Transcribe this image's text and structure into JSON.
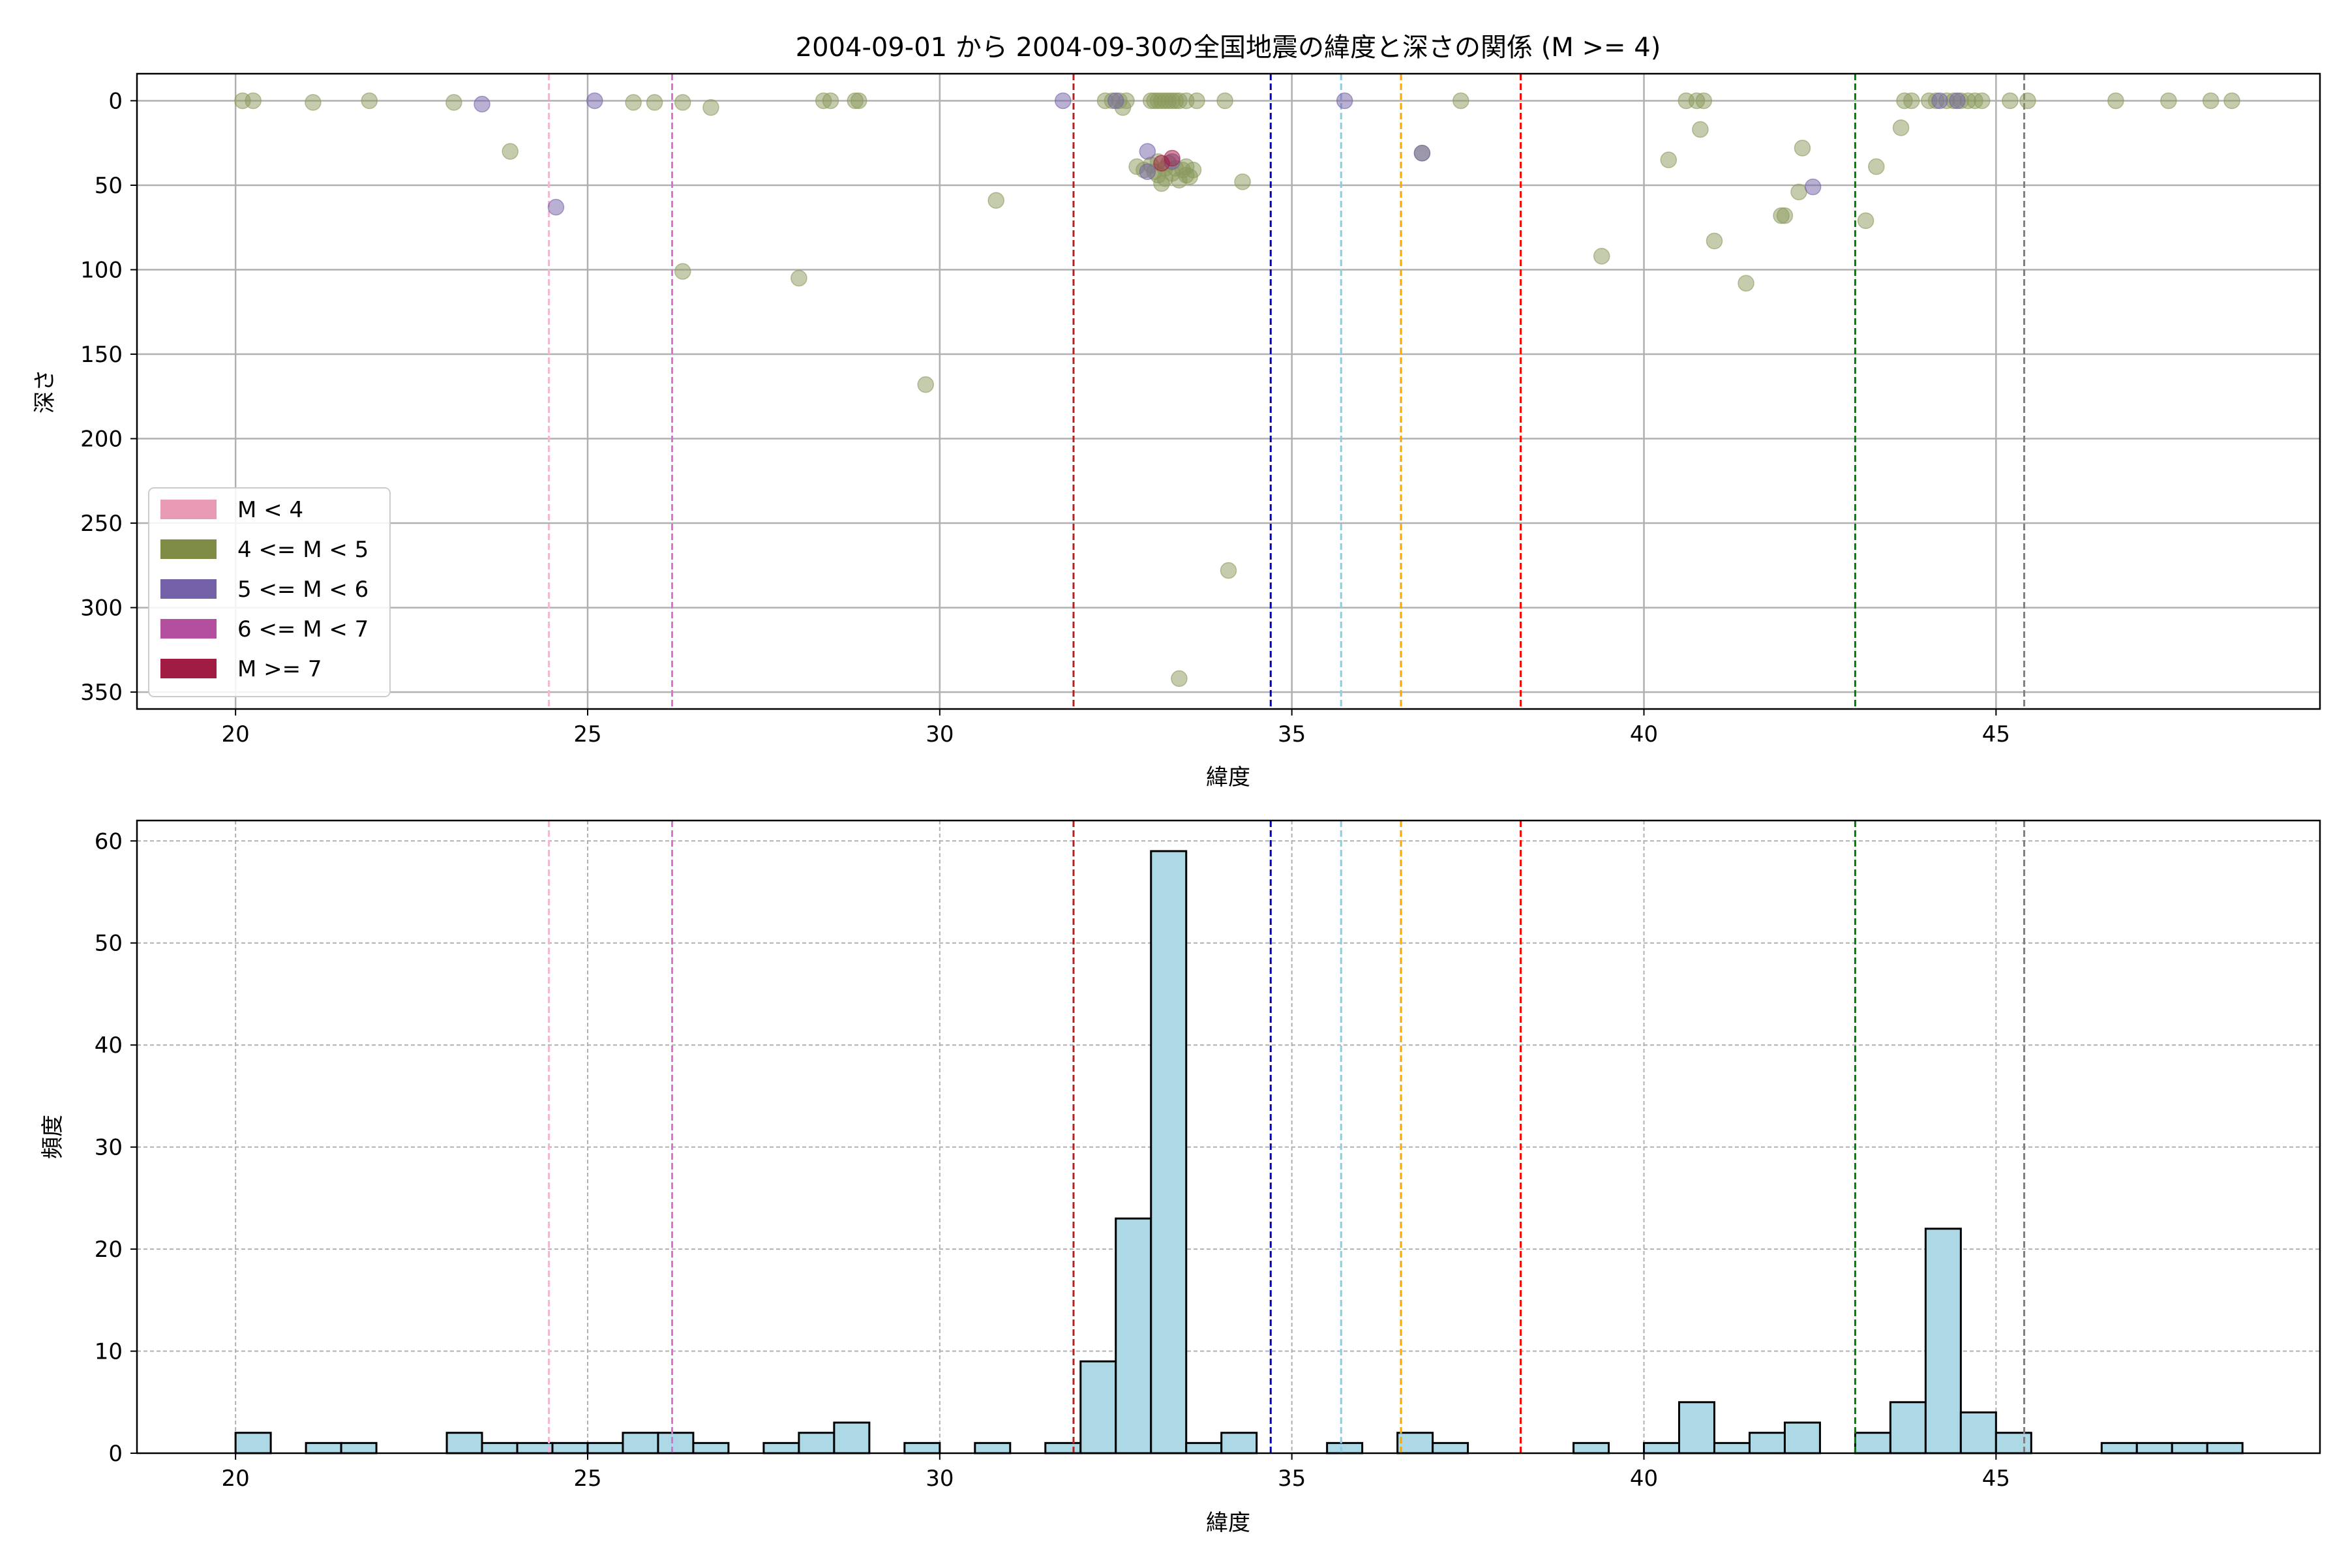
{
  "chart_data": [
    {
      "type": "scatter",
      "title": "2004-09-01 から 2004-09-30の全国地震の緯度と深さの関係 (M >= 4)",
      "xlabel": "緯度",
      "ylabel": "深さ",
      "xlim": [
        18.6,
        49.6
      ],
      "ylim": [
        360,
        -16
      ],
      "y_inverted": true,
      "grid": true,
      "legend_position": "lower-left",
      "xticks": [
        "20",
        "25",
        "30",
        "35",
        "40",
        "45"
      ],
      "yticks": [
        "0",
        "50",
        "100",
        "150",
        "200",
        "250",
        "300",
        "350"
      ],
      "legend": [
        {
          "label": "M < 4",
          "color": "#e899b4"
        },
        {
          "label": "4 <= M < 5",
          "color": "#7f8c45"
        },
        {
          "label": "5 <= M < 6",
          "color": "#7461a8"
        },
        {
          "label": "6 <= M < 7",
          "color": "#b44fa0"
        },
        {
          "label": "M >= 7",
          "color": "#a01c43"
        }
      ],
      "reference_lines": [
        {
          "x": 24.45,
          "color": "#f4b6d2"
        },
        {
          "x": 26.2,
          "color": "#da70d6"
        },
        {
          "x": 31.9,
          "color": "#b22222"
        },
        {
          "x": 34.7,
          "color": "#0000cd"
        },
        {
          "x": 35.7,
          "color": "#87ceeb"
        },
        {
          "x": 36.55,
          "color": "#ffa500"
        },
        {
          "x": 38.25,
          "color": "#ff0000"
        },
        {
          "x": 43.0,
          "color": "#008000"
        },
        {
          "x": 45.4,
          "color": "#808080"
        }
      ],
      "series": [
        {
          "class": "4 <= M < 5",
          "color": "#8a9a5b",
          "points": [
            [
              20.1,
              0
            ],
            [
              20.25,
              0
            ],
            [
              21.1,
              1
            ],
            [
              21.9,
              0
            ],
            [
              23.1,
              1
            ],
            [
              23.9,
              30
            ],
            [
              25.65,
              1
            ],
            [
              25.95,
              1
            ],
            [
              26.35,
              1
            ],
            [
              26.75,
              4
            ],
            [
              26.35,
              101
            ],
            [
              28.0,
              105
            ],
            [
              28.35,
              0
            ],
            [
              28.45,
              0
            ],
            [
              28.8,
              0
            ],
            [
              28.85,
              0
            ],
            [
              29.8,
              168
            ],
            [
              30.8,
              59
            ],
            [
              32.35,
              0
            ],
            [
              32.45,
              0
            ],
            [
              32.55,
              0
            ],
            [
              32.6,
              4
            ],
            [
              32.65,
              0
            ],
            [
              33.0,
              0
            ],
            [
              33.05,
              0
            ],
            [
              33.1,
              0
            ],
            [
              33.15,
              0
            ],
            [
              33.2,
              0
            ],
            [
              33.25,
              0
            ],
            [
              33.3,
              0
            ],
            [
              33.35,
              0
            ],
            [
              33.4,
              0
            ],
            [
              33.5,
              0
            ],
            [
              32.8,
              39
            ],
            [
              32.9,
              41
            ],
            [
              33.0,
              38
            ],
            [
              33.05,
              42
            ],
            [
              33.1,
              36
            ],
            [
              33.1,
              44
            ],
            [
              33.15,
              49
            ],
            [
              33.2,
              40
            ],
            [
              33.2,
              46
            ],
            [
              33.25,
              37
            ],
            [
              33.3,
              43
            ],
            [
              33.35,
              40
            ],
            [
              33.4,
              47
            ],
            [
              33.45,
              41
            ],
            [
              33.5,
              39
            ],
            [
              33.5,
              44
            ],
            [
              33.55,
              45
            ],
            [
              33.6,
              41
            ],
            [
              33.65,
              0
            ],
            [
              34.05,
              0
            ],
            [
              34.3,
              48
            ],
            [
              34.1,
              278
            ],
            [
              33.4,
              342
            ],
            [
              36.85,
              31
            ],
            [
              37.4,
              0
            ],
            [
              39.4,
              92
            ],
            [
              40.35,
              35
            ],
            [
              40.6,
              0
            ],
            [
              40.75,
              0
            ],
            [
              40.8,
              17
            ],
            [
              40.85,
              0
            ],
            [
              41.0,
              83
            ],
            [
              41.45,
              108
            ],
            [
              41.95,
              68
            ],
            [
              42.0,
              68
            ],
            [
              42.2,
              54
            ],
            [
              42.25,
              28
            ],
            [
              43.15,
              71
            ],
            [
              43.3,
              39
            ],
            [
              43.65,
              16
            ],
            [
              43.7,
              0
            ],
            [
              43.8,
              0
            ],
            [
              44.05,
              0
            ],
            [
              44.15,
              0
            ],
            [
              44.3,
              0
            ],
            [
              44.4,
              0
            ],
            [
              44.5,
              0
            ],
            [
              44.6,
              0
            ],
            [
              44.7,
              0
            ],
            [
              44.8,
              0
            ],
            [
              45.2,
              0
            ],
            [
              45.45,
              0
            ],
            [
              46.7,
              0
            ],
            [
              47.45,
              0
            ],
            [
              48.05,
              0
            ],
            [
              48.35,
              0
            ]
          ]
        },
        {
          "class": "5 <= M < 6",
          "color": "#7461a8",
          "points": [
            [
              23.5,
              2
            ],
            [
              24.55,
              63
            ],
            [
              25.1,
              0
            ],
            [
              31.75,
              0
            ],
            [
              32.5,
              0
            ],
            [
              32.95,
              30
            ],
            [
              32.95,
              42
            ],
            [
              33.3,
              36
            ],
            [
              35.75,
              0
            ],
            [
              36.85,
              31
            ],
            [
              42.4,
              51
            ],
            [
              44.2,
              0
            ],
            [
              44.45,
              0
            ]
          ]
        },
        {
          "class": "M >= 7",
          "color": "#a01c43",
          "points": [
            [
              33.15,
              37
            ],
            [
              33.3,
              34
            ]
          ]
        }
      ]
    },
    {
      "type": "bar",
      "xlabel": "緯度",
      "ylabel": "頻度",
      "xlim": [
        18.6,
        49.6
      ],
      "ylim": [
        0,
        62
      ],
      "grid": true,
      "bar_color": "#add8e6",
      "bin_width": 0.5,
      "xticks": [
        "20",
        "25",
        "30",
        "35",
        "40",
        "45"
      ],
      "yticks": [
        "0",
        "10",
        "20",
        "30",
        "40",
        "50",
        "60"
      ],
      "bins": [
        [
          20.0,
          2
        ],
        [
          21.0,
          1
        ],
        [
          21.5,
          1
        ],
        [
          23.0,
          2
        ],
        [
          23.5,
          1
        ],
        [
          24.0,
          1
        ],
        [
          24.5,
          1
        ],
        [
          25.0,
          1
        ],
        [
          25.5,
          2
        ],
        [
          26.0,
          2
        ],
        [
          26.5,
          1
        ],
        [
          27.5,
          1
        ],
        [
          28.0,
          2
        ],
        [
          28.5,
          3
        ],
        [
          29.5,
          1
        ],
        [
          30.5,
          1
        ],
        [
          31.5,
          1
        ],
        [
          32.0,
          9
        ],
        [
          32.5,
          23
        ],
        [
          33.0,
          59
        ],
        [
          33.5,
          1
        ],
        [
          34.0,
          2
        ],
        [
          35.5,
          1
        ],
        [
          36.5,
          2
        ],
        [
          37.0,
          1
        ],
        [
          39.0,
          1
        ],
        [
          40.0,
          1
        ],
        [
          40.5,
          5
        ],
        [
          41.0,
          1
        ],
        [
          41.5,
          2
        ],
        [
          42.0,
          3
        ],
        [
          43.0,
          2
        ],
        [
          43.5,
          5
        ],
        [
          44.0,
          22
        ],
        [
          44.5,
          4
        ],
        [
          45.0,
          2
        ],
        [
          46.5,
          1
        ],
        [
          47.0,
          1
        ],
        [
          47.5,
          1
        ],
        [
          48.0,
          1
        ]
      ],
      "reference_lines": [
        {
          "x": 24.45,
          "color": "#f4b6d2"
        },
        {
          "x": 26.2,
          "color": "#da70d6"
        },
        {
          "x": 31.9,
          "color": "#b22222"
        },
        {
          "x": 34.7,
          "color": "#0000cd"
        },
        {
          "x": 35.7,
          "color": "#87ceeb"
        },
        {
          "x": 36.55,
          "color": "#ffa500"
        },
        {
          "x": 38.25,
          "color": "#ff0000"
        },
        {
          "x": 43.0,
          "color": "#008000"
        },
        {
          "x": 45.4,
          "color": "#808080"
        }
      ]
    }
  ]
}
